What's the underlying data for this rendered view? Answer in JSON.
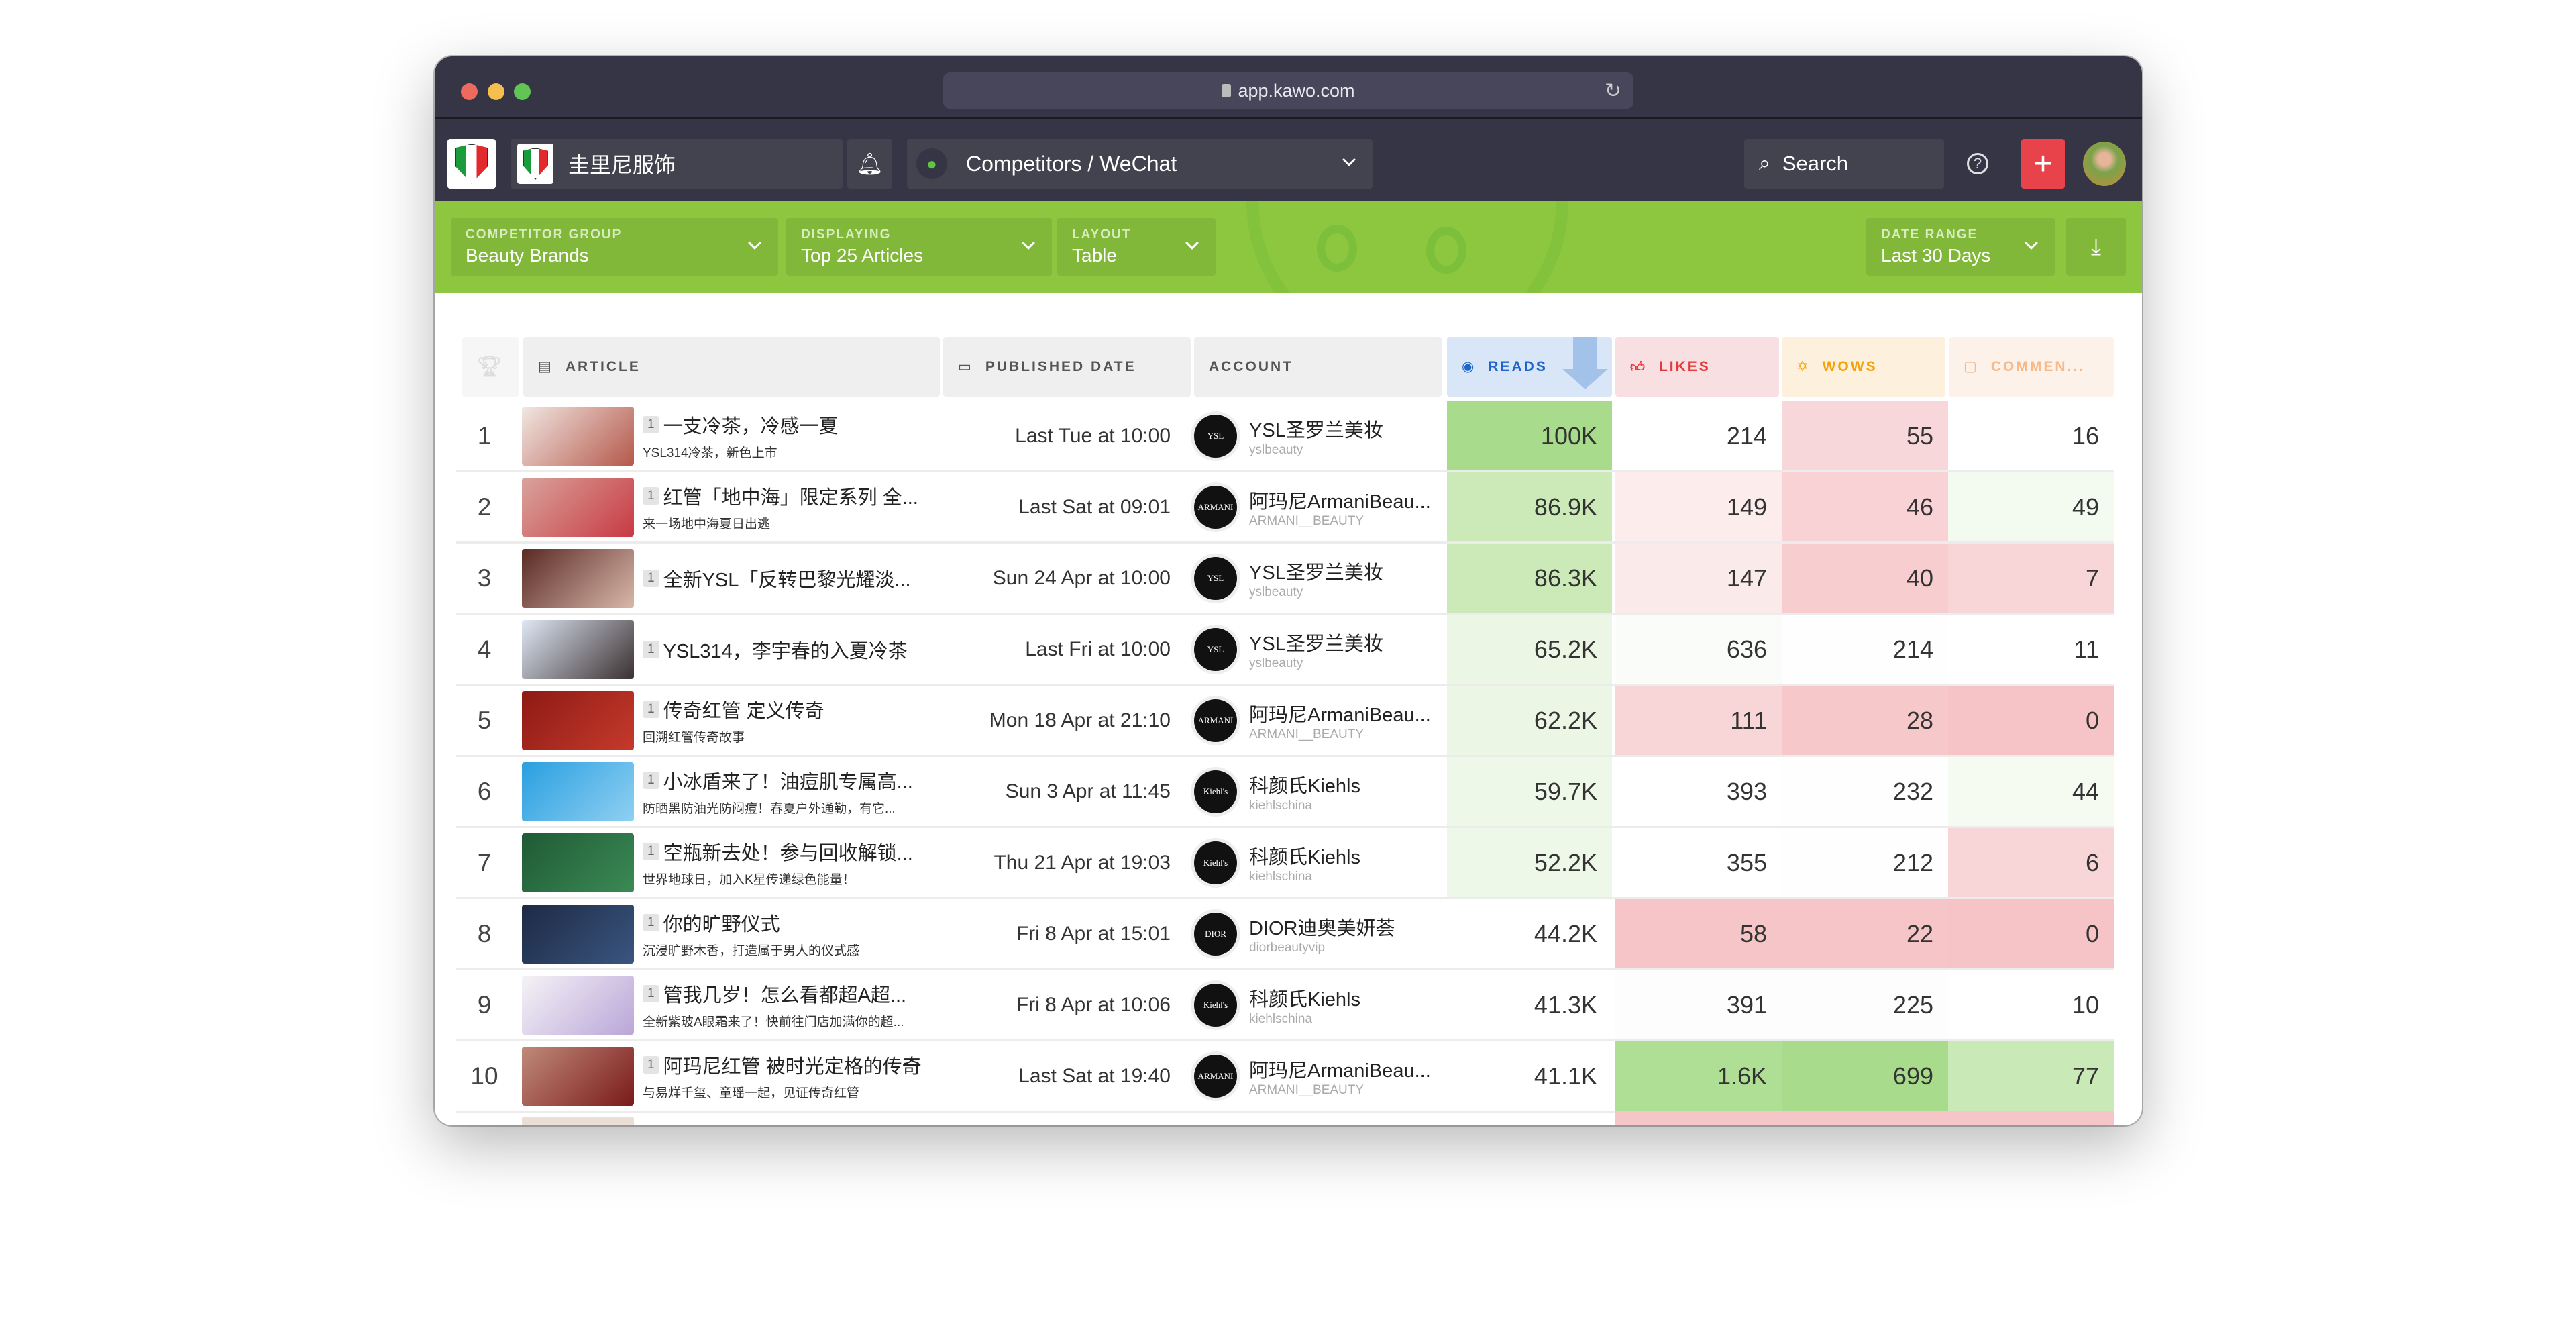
{
  "browser": {
    "url": "app.kawo.com",
    "traffic_lights": [
      "#ed6a5e",
      "#f5bf4f",
      "#61c454"
    ]
  },
  "header": {
    "brand_name": "圭里尼服饰",
    "channel": "Competitors / WeChat",
    "search_label": "Search",
    "add_button_color": "#e8434a"
  },
  "filters": [
    {
      "label": "COMPETITOR GROUP",
      "value": "Beauty Brands"
    },
    {
      "label": "DISPLAYING",
      "value": "Top 25 Articles"
    },
    {
      "label": "LAYOUT",
      "value": "Table"
    },
    {
      "label": "DATE RANGE",
      "value": "Last 30 Days"
    }
  ],
  "columns": {
    "article": "ARTICLE",
    "published": "PUBLISHED DATE",
    "account": "ACCOUNT",
    "reads": "READS",
    "likes": "LIKES",
    "wows": "WOWS",
    "comments": "COMMEN..."
  },
  "column_colors": {
    "reads": "#1f64c8",
    "likes": "#e5383b",
    "wows": "#f5a10a",
    "comments": "#f5b98a"
  },
  "sort": {
    "column": "reads",
    "direction": "descending"
  },
  "rows": [
    {
      "rank": "1",
      "badge": "1",
      "title": "一支冷茶，冷感一夏",
      "subtitle": "YSL314冷茶，新色上市",
      "date": "Last Tue at 10:00",
      "account": "YSL圣罗兰美妆",
      "handle": "yslbeauty",
      "logo": "YSL",
      "reads": "100K",
      "likes": "214",
      "wows": "55",
      "comments": "16",
      "heat": [
        "#a8dc8c",
        "#ffffff",
        "#f8d7da",
        "#ffffff"
      ],
      "thumb": [
        "#f1e7e2",
        "#b5584a"
      ]
    },
    {
      "rank": "2",
      "badge": "1",
      "title": "红管「地中海」限定系列 全...",
      "subtitle": "来一场地中海夏日出逃",
      "date": "Last Sat at 09:01",
      "account": "阿玛尼ArmaniBeau...",
      "handle": "ARMANI__BEAUTY",
      "logo": "ARMANI",
      "reads": "86.9K",
      "likes": "149",
      "wows": "46",
      "comments": "49",
      "heat": [
        "#cbeab7",
        "#fcecec",
        "#f8d2d4",
        "#f3faef"
      ],
      "thumb": [
        "#d9a39c",
        "#c83a43"
      ]
    },
    {
      "rank": "3",
      "badge": "1",
      "title": "全新YSL「反转巴黎光耀淡...",
      "subtitle": "",
      "date": "Sun 24 Apr at 10:00",
      "account": "YSL圣罗兰美妆",
      "handle": "yslbeauty",
      "logo": "YSL",
      "reads": "86.3K",
      "likes": "147",
      "wows": "40",
      "comments": "7",
      "heat": [
        "#cbeab7",
        "#fbeaea",
        "#f7cdcf",
        "#f8d6d8"
      ],
      "thumb": [
        "#5a2a25",
        "#d9b7aa"
      ]
    },
    {
      "rank": "4",
      "badge": "1",
      "title": "YSL314，李宇春的入夏冷茶",
      "subtitle": "",
      "date": "Last Fri at 10:00",
      "account": "YSL圣罗兰美妆",
      "handle": "yslbeauty",
      "logo": "YSL",
      "reads": "65.2K",
      "likes": "636",
      "wows": "214",
      "comments": "11",
      "heat": [
        "#ebf6e4",
        "#fafcf9",
        "#fefefe",
        "#ffffff"
      ],
      "thumb": [
        "#dfe7f5",
        "#3a3030"
      ]
    },
    {
      "rank": "5",
      "badge": "1",
      "title": "传奇红管 定义传奇",
      "subtitle": "回溯红管传奇故事",
      "date": "Mon 18 Apr at 21:10",
      "account": "阿玛尼ArmaniBeau...",
      "handle": "ARMANI__BEAUTY",
      "logo": "ARMANI",
      "reads": "62.2K",
      "likes": "111",
      "wows": "28",
      "comments": "0",
      "heat": [
        "#ebf6e4",
        "#f8d6d8",
        "#f6c8ca",
        "#f6c4c6"
      ],
      "thumb": [
        "#8e1a14",
        "#c53a2c"
      ]
    },
    {
      "rank": "6",
      "badge": "1",
      "title": "小冰盾来了！油痘肌专属高...",
      "subtitle": "防晒黑防油光防闷痘！春夏户外通勤，有它...",
      "date": "Sun 3 Apr at 11:45",
      "account": "科颜氏Kiehls",
      "handle": "kiehlschina",
      "logo": "Kiehl's",
      "reads": "59.7K",
      "likes": "393",
      "wows": "232",
      "comments": "44",
      "heat": [
        "#eef8e8",
        "#ffffff",
        "#fefefe",
        "#f5fbf1"
      ],
      "thumb": [
        "#2a9fe0",
        "#8fd0f2"
      ]
    },
    {
      "rank": "7",
      "badge": "1",
      "title": "空瓶新去处！参与回收解锁...",
      "subtitle": "世界地球日，加入K星传递绿色能量！",
      "date": "Thu 21 Apr at 19:03",
      "account": "科颜氏Kiehls",
      "handle": "kiehlschina",
      "logo": "Kiehl's",
      "reads": "52.2K",
      "likes": "355",
      "wows": "212",
      "comments": "6",
      "heat": [
        "#eef8e8",
        "#ffffff",
        "#fefefe",
        "#f8d6d8"
      ],
      "thumb": [
        "#1f5a35",
        "#3b8a55"
      ]
    },
    {
      "rank": "8",
      "badge": "1",
      "title": "你的旷野仪式",
      "subtitle": "沉浸旷野木香，打造属于男人的仪式感",
      "date": "Fri 8 Apr at 15:01",
      "account": "DIOR迪奥美妍荟",
      "handle": "diorbeautyvip",
      "logo": "DIOR",
      "reads": "44.2K",
      "likes": "58",
      "wows": "22",
      "comments": "0",
      "heat": [
        "#ffffff",
        "#f6c5c7",
        "#f6c5c7",
        "#f6c4c6"
      ],
      "thumb": [
        "#1d2a44",
        "#3a5580"
      ]
    },
    {
      "rank": "9",
      "badge": "1",
      "title": "管我几岁！怎么看都超A超...",
      "subtitle": "全新紫玻A眼霜来了！快前往门店加满你的超...",
      "date": "Fri 8 Apr at 10:06",
      "account": "科颜氏Kiehls",
      "handle": "kiehlschina",
      "logo": "Kiehl's",
      "reads": "41.3K",
      "likes": "391",
      "wows": "225",
      "comments": "10",
      "heat": [
        "#ffffff",
        "#fdfdfd",
        "#fdfdfd",
        "#ffffff"
      ],
      "thumb": [
        "#f5f3f6",
        "#b9a6d8"
      ]
    },
    {
      "rank": "10",
      "badge": "1",
      "title": "阿玛尼红管 被时光定格的传奇",
      "subtitle": "与易烊千玺、童瑶一起，见证传奇红管",
      "date": "Last Sat at 19:40",
      "account": "阿玛尼ArmaniBeau...",
      "handle": "ARMANI__BEAUTY",
      "logo": "ARMANI",
      "reads": "41.1K",
      "likes": "1.6K",
      "wows": "699",
      "comments": "77",
      "heat": [
        "#ffffff",
        "#afdf94",
        "#a8dc8c",
        "#c9eab6"
      ],
      "thumb": [
        "#c08a7a",
        "#7a1a1a"
      ]
    }
  ]
}
